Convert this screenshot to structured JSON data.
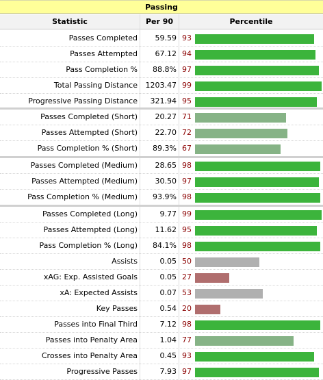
{
  "title": "Passing",
  "headers": {
    "statistic": "Statistic",
    "per90": "Per 90",
    "percentile": "Percentile"
  },
  "colors": {
    "high": "#3cb43c",
    "mid": "#86b386",
    "avg": "#b0b0b0",
    "low": "#b06e6e",
    "rank_text": "#8b0000"
  },
  "rows": [
    {
      "stat": "Passes Completed",
      "per90": "59.59",
      "pct": "93",
      "color": "high"
    },
    {
      "stat": "Passes Attempted",
      "per90": "67.12",
      "pct": "94",
      "color": "high"
    },
    {
      "stat": "Pass Completion %",
      "per90": "88.8%",
      "pct": "97",
      "color": "high"
    },
    {
      "stat": "Total Passing Distance",
      "per90": "1203.47",
      "pct": "99",
      "color": "high"
    },
    {
      "stat": "Progressive Passing Distance",
      "per90": "321.94",
      "pct": "95",
      "color": "high"
    },
    {
      "stat": "Passes Completed (Short)",
      "per90": "20.27",
      "pct": "71",
      "color": "mid"
    },
    {
      "stat": "Passes Attempted (Short)",
      "per90": "22.70",
      "pct": "72",
      "color": "mid"
    },
    {
      "stat": "Pass Completion % (Short)",
      "per90": "89.3%",
      "pct": "67",
      "color": "mid"
    },
    {
      "stat": "Passes Completed (Medium)",
      "per90": "28.65",
      "pct": "98",
      "color": "high"
    },
    {
      "stat": "Passes Attempted (Medium)",
      "per90": "30.50",
      "pct": "97",
      "color": "high"
    },
    {
      "stat": "Pass Completion % (Medium)",
      "per90": "93.9%",
      "pct": "98",
      "color": "high"
    },
    {
      "stat": "Passes Completed (Long)",
      "per90": "9.77",
      "pct": "99",
      "color": "high"
    },
    {
      "stat": "Passes Attempted (Long)",
      "per90": "11.62",
      "pct": "95",
      "color": "high"
    },
    {
      "stat": "Pass Completion % (Long)",
      "per90": "84.1%",
      "pct": "98",
      "color": "high"
    },
    {
      "stat": "Assists",
      "per90": "0.05",
      "pct": "50",
      "color": "avg"
    },
    {
      "stat": "xAG: Exp. Assisted Goals",
      "per90": "0.05",
      "pct": "27",
      "color": "low"
    },
    {
      "stat": "xA: Expected Assists",
      "per90": "0.07",
      "pct": "53",
      "color": "avg"
    },
    {
      "stat": "Key Passes",
      "per90": "0.54",
      "pct": "20",
      "color": "low"
    },
    {
      "stat": "Passes into Final Third",
      "per90": "7.12",
      "pct": "98",
      "color": "high"
    },
    {
      "stat": "Passes into Penalty Area",
      "per90": "1.04",
      "pct": "77",
      "color": "mid"
    },
    {
      "stat": "Crosses into Penalty Area",
      "per90": "0.45",
      "pct": "93",
      "color": "high"
    },
    {
      "stat": "Progressive Passes",
      "per90": "7.93",
      "pct": "97",
      "color": "high"
    }
  ]
}
